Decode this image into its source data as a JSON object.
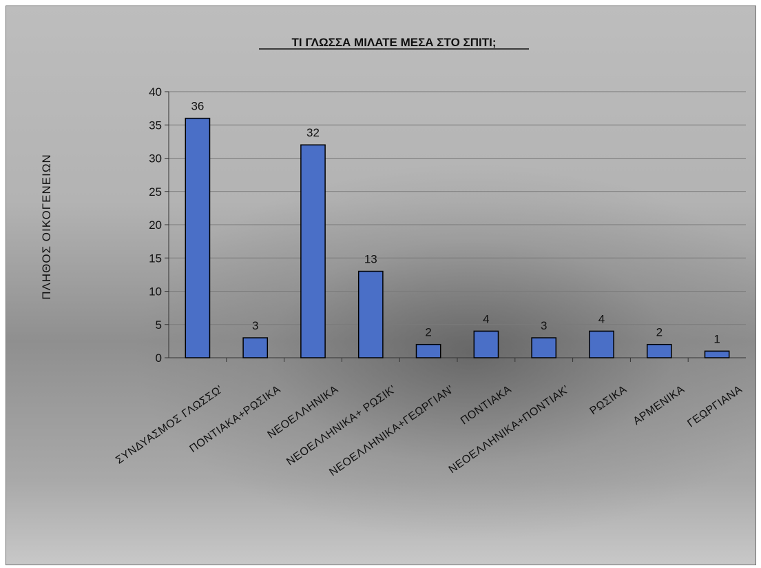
{
  "chart_data": {
    "type": "bar",
    "title": "ΤΙ ΓΛΩΣΣΑ ΜΙΛΑΤΕ ΜΕΣΑ ΣΤΟ ΣΠΙΤΙ;",
    "ylabel": "ΠΛΗΘΟΣ ΟΙΚΟΓΕΝΕΙΩΝ",
    "xlabel": "",
    "ylim": [
      0,
      40
    ],
    "yticks": [
      0,
      5,
      10,
      15,
      20,
      25,
      30,
      35,
      40
    ],
    "grid": true,
    "legend": "none",
    "categories": [
      "ΣΥΝΔΥΑΣΜΟΣ ΓΛΩΣΣΩ'",
      "ΠΟΝΤΙΑΚΑ+ΡΩΣΙΚΑ",
      "ΝΕΟΕΛΛΗΝΙΚΑ",
      "ΝΕΟΕΛΛΗΝΙΚΑ+ ΡΩΣΙΚ'",
      "ΝΕΟΕΛΛΗΝΙΚΑ+ΓΕΩΡΓΙΑΝ'",
      "ΠΟΝΤΙΑΚΑ",
      "ΝΕΟΕΛΛΗΝΙΚΑ+ΠΟΝΤΙΑΚ'",
      "ΡΩΣΙΚΑ",
      "ΑΡΜΕΝΙΚΑ",
      "ΓΕΩΡΓΙΑΝΑ"
    ],
    "values": [
      36,
      3,
      32,
      13,
      2,
      4,
      3,
      4,
      2,
      1
    ],
    "bar_color": "#4a6fc7",
    "bar_edge_color": "#000000",
    "gridline_color": "#7a7a7a"
  }
}
